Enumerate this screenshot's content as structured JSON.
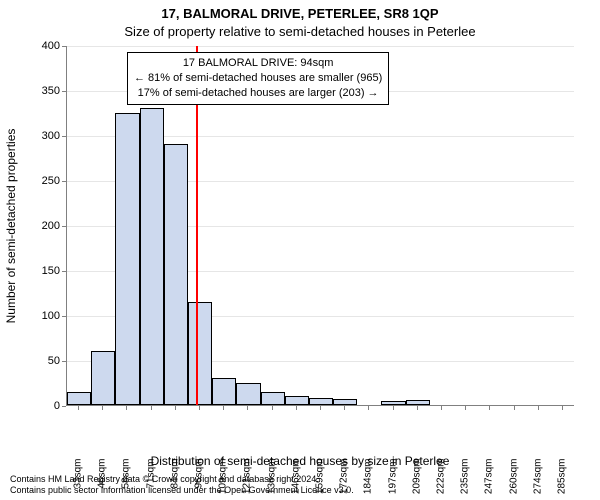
{
  "supertitle": "17, BALMORAL DRIVE, PETERLEE, SR8 1QP",
  "title": "Size of property relative to semi-detached houses in Peterlee",
  "ylabel": "Number of semi-detached properties",
  "xlabel": "Distribution of semi-detached houses by size in Peterlee",
  "footer_line1": "Contains HM Land Registry data © Crown copyright and database right 2024.",
  "footer_line2": "Contains public sector information licensed under the Open Government Licence v3.0.",
  "chart": {
    "type": "bar",
    "plot_bg": "#ffffff",
    "grid_color": "#e6e6e6",
    "axis_color": "#808080",
    "bar_fill": "#cdd9ee",
    "bar_edge": "#000000",
    "refline_color": "#ff0000",
    "ylim": [
      0,
      400
    ],
    "ytick_step": 50,
    "label_fontsize": 12,
    "tick_fontsize": 11,
    "x_categories": [
      "33sqm",
      "46sqm",
      "58sqm",
      "71sqm",
      "84sqm",
      "96sqm",
      "109sqm",
      "121sqm",
      "136sqm",
      "146sqm",
      "159sqm",
      "172sqm",
      "184sqm",
      "197sqm",
      "209sqm",
      "222sqm",
      "235sqm",
      "247sqm",
      "260sqm",
      "274sqm",
      "285sqm"
    ],
    "values": [
      14,
      60,
      325,
      330,
      290,
      115,
      30,
      25,
      15,
      10,
      8,
      7,
      0,
      4,
      6,
      0,
      0,
      0,
      0,
      0,
      0
    ],
    "refline_value_sqm": 94,
    "x_domain_sqm": [
      27,
      291
    ],
    "annotation": {
      "line1": "17 BALMORAL DRIVE: 94sqm",
      "line2": "← 81% of semi-detached houses are smaller (965)",
      "line3": "17% of semi-detached houses are larger (203) →",
      "border_color": "#000000",
      "bg_color": "#ffffff",
      "fontsize": 11
    }
  },
  "yticks": [
    {
      "v": 0,
      "label": "0"
    },
    {
      "v": 50,
      "label": "50"
    },
    {
      "v": 100,
      "label": "100"
    },
    {
      "v": 150,
      "label": "150"
    },
    {
      "v": 200,
      "label": "200"
    },
    {
      "v": 250,
      "label": "250"
    },
    {
      "v": 300,
      "label": "300"
    },
    {
      "v": 350,
      "label": "350"
    },
    {
      "v": 400,
      "label": "400"
    }
  ]
}
